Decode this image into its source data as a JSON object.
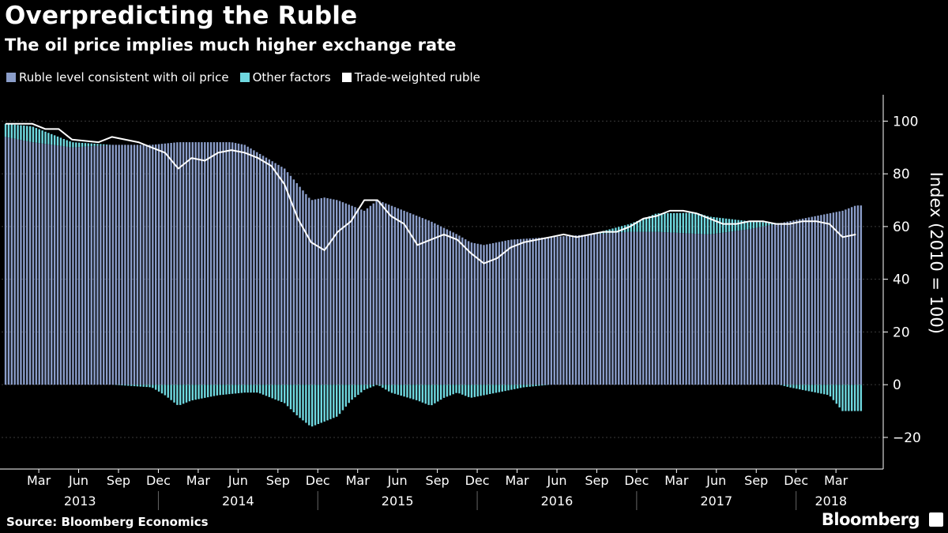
{
  "title": "Overpredicting the Ruble",
  "subtitle": "The oil price implies much higher exchange rate",
  "source": "Source: Bloomberg Economics",
  "brand": "Bloomberg",
  "colors": {
    "oil": "#8a9dc9",
    "other": "#6fd8e0",
    "ruble": "#ffffff",
    "grid": "#3a3a3a",
    "background": "#000000"
  },
  "chart_data": {
    "type": "bar",
    "ylabel": "Index (2010 = 100)",
    "ylim": [
      -32,
      110
    ],
    "y_ticks": [
      -20,
      0,
      20,
      40,
      60,
      80,
      100
    ],
    "y_axis_side": "right",
    "grid": true,
    "legend_placement": "top-left",
    "x_start": "2013-01",
    "x_end": "2018-05",
    "frequency": "weekly",
    "month_ticks": [
      "Mar",
      "Jun",
      "Sep",
      "Dec",
      "Mar",
      "Jun",
      "Sep",
      "Dec",
      "Mar",
      "Jun",
      "Sep",
      "Dec",
      "Mar",
      "Jun",
      "Sep",
      "Dec",
      "Mar",
      "Jun",
      "Sep",
      "Dec",
      "Mar"
    ],
    "year_ticks": [
      "2013",
      "2014",
      "2015",
      "2016",
      "2017",
      "2018"
    ],
    "series": [
      {
        "name": "Ruble level consistent with oil price",
        "type": "bar",
        "anchors": [
          [
            "2013-01",
            94
          ],
          [
            "2013-03",
            92
          ],
          [
            "2013-06",
            90
          ],
          [
            "2013-09",
            91
          ],
          [
            "2013-12",
            91
          ],
          [
            "2014-02",
            92
          ],
          [
            "2014-06",
            92
          ],
          [
            "2014-07",
            91
          ],
          [
            "2014-08",
            88
          ],
          [
            "2014-10",
            82
          ],
          [
            "2014-11",
            76
          ],
          [
            "2014-12",
            70
          ],
          [
            "2015-01",
            71
          ],
          [
            "2015-02",
            70
          ],
          [
            "2015-04",
            66
          ],
          [
            "2015-05",
            70
          ],
          [
            "2015-06",
            68
          ],
          [
            "2015-08",
            64
          ],
          [
            "2015-09",
            62
          ],
          [
            "2015-11",
            57
          ],
          [
            "2015-12",
            54
          ],
          [
            "2016-01",
            53
          ],
          [
            "2016-03",
            55
          ],
          [
            "2016-06",
            56
          ],
          [
            "2016-09",
            57
          ],
          [
            "2016-12",
            58
          ],
          [
            "2017-02",
            58
          ],
          [
            "2017-06",
            57
          ],
          [
            "2017-09",
            59
          ],
          [
            "2017-12",
            62
          ],
          [
            "2018-02",
            64
          ],
          [
            "2018-04",
            66
          ],
          [
            "2018-05",
            68
          ]
        ]
      },
      {
        "name": "Other factors",
        "type": "bar",
        "anchors": [
          [
            "2013-01",
            5
          ],
          [
            "2013-03",
            6
          ],
          [
            "2013-06",
            2
          ],
          [
            "2013-09",
            0
          ],
          [
            "2013-12",
            -1
          ],
          [
            "2014-01",
            -4
          ],
          [
            "2014-02",
            -8
          ],
          [
            "2014-03",
            -6
          ],
          [
            "2014-05",
            -4
          ],
          [
            "2014-07",
            -3
          ],
          [
            "2014-08",
            -3
          ],
          [
            "2014-10",
            -7
          ],
          [
            "2014-11",
            -12
          ],
          [
            "2014-12",
            -16
          ],
          [
            "2015-01",
            -14
          ],
          [
            "2015-02",
            -12
          ],
          [
            "2015-03",
            -6
          ],
          [
            "2015-04",
            -2
          ],
          [
            "2015-05",
            0
          ],
          [
            "2015-06",
            -3
          ],
          [
            "2015-08",
            -6
          ],
          [
            "2015-09",
            -8
          ],
          [
            "2015-10",
            -5
          ],
          [
            "2015-11",
            -3
          ],
          [
            "2015-12",
            -5
          ],
          [
            "2016-01",
            -4
          ],
          [
            "2016-02",
            -3
          ],
          [
            "2016-04",
            -1
          ],
          [
            "2016-06",
            0
          ],
          [
            "2016-09",
            0
          ],
          [
            "2016-12",
            3
          ],
          [
            "2017-02",
            7
          ],
          [
            "2017-05",
            8
          ],
          [
            "2017-09",
            3
          ],
          [
            "2017-12",
            -1
          ],
          [
            "2018-01",
            -2
          ],
          [
            "2018-02",
            -3
          ],
          [
            "2018-03",
            -4
          ],
          [
            "2018-04",
            -10
          ],
          [
            "2018-05",
            -10
          ]
        ]
      },
      {
        "name": "Trade-weighted ruble",
        "type": "line",
        "anchors": [
          [
            "2013-01",
            99
          ],
          [
            "2013-03",
            99
          ],
          [
            "2013-04",
            97
          ],
          [
            "2013-05",
            97
          ],
          [
            "2013-06",
            93
          ],
          [
            "2013-08",
            92
          ],
          [
            "2013-09",
            94
          ],
          [
            "2013-11",
            92
          ],
          [
            "2013-12",
            90
          ],
          [
            "2014-01",
            88
          ],
          [
            "2014-02",
            82
          ],
          [
            "2014-03",
            86
          ],
          [
            "2014-04",
            85
          ],
          [
            "2014-05",
            88
          ],
          [
            "2014-06",
            89
          ],
          [
            "2014-07",
            88
          ],
          [
            "2014-08",
            86
          ],
          [
            "2014-09",
            83
          ],
          [
            "2014-10",
            76
          ],
          [
            "2014-11",
            63
          ],
          [
            "2014-12",
            54
          ],
          [
            "2015-01",
            51
          ],
          [
            "2015-02",
            58
          ],
          [
            "2015-03",
            62
          ],
          [
            "2015-04",
            70
          ],
          [
            "2015-05",
            70
          ],
          [
            "2015-06",
            64
          ],
          [
            "2015-07",
            61
          ],
          [
            "2015-08",
            53
          ],
          [
            "2015-09",
            55
          ],
          [
            "2015-10",
            57
          ],
          [
            "2015-11",
            55
          ],
          [
            "2015-12",
            50
          ],
          [
            "2016-01",
            46
          ],
          [
            "2016-02",
            48
          ],
          [
            "2016-03",
            52
          ],
          [
            "2016-04",
            54
          ],
          [
            "2016-06",
            56
          ],
          [
            "2016-07",
            57
          ],
          [
            "2016-08",
            56
          ],
          [
            "2016-09",
            57
          ],
          [
            "2016-10",
            58
          ],
          [
            "2016-11",
            58
          ],
          [
            "2016-12",
            60
          ],
          [
            "2017-01",
            63
          ],
          [
            "2017-02",
            64
          ],
          [
            "2017-03",
            66
          ],
          [
            "2017-04",
            66
          ],
          [
            "2017-05",
            65
          ],
          [
            "2017-06",
            63
          ],
          [
            "2017-07",
            61
          ],
          [
            "2017-08",
            61
          ],
          [
            "2017-09",
            62
          ],
          [
            "2017-10",
            62
          ],
          [
            "2017-11",
            61
          ],
          [
            "2017-12",
            61
          ],
          [
            "2018-01",
            62
          ],
          [
            "2018-02",
            62
          ],
          [
            "2018-03",
            61
          ],
          [
            "2018-04",
            56
          ],
          [
            "2018-05",
            57
          ]
        ]
      }
    ]
  }
}
